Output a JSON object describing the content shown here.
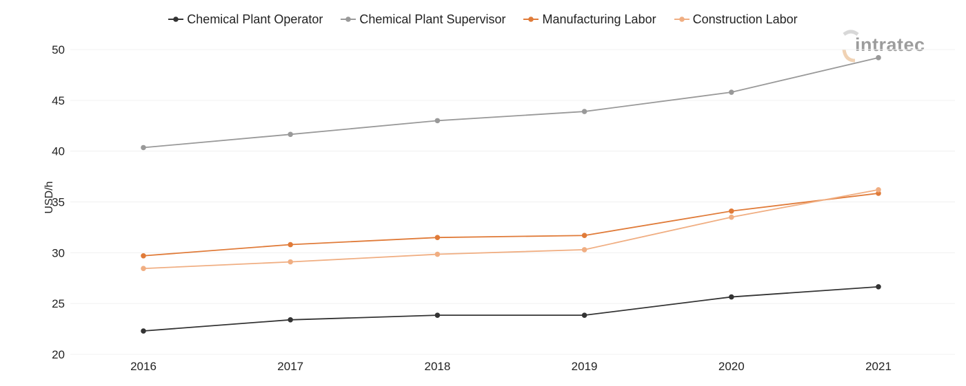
{
  "watermark": {
    "text": "intratec",
    "color": "#9c9c9c",
    "accent": "#f0d2b4"
  },
  "chart_data": {
    "type": "line",
    "title": "",
    "xlabel": "",
    "ylabel": "USD/h",
    "categories": [
      "2016",
      "2017",
      "2018",
      "2019",
      "2020",
      "2021"
    ],
    "ylim": [
      20,
      50
    ],
    "yticks": [
      20,
      25,
      30,
      35,
      40,
      45,
      50
    ],
    "grid": true,
    "legend_position": "top-center",
    "series": [
      {
        "name": "Chemical Plant Operator",
        "color": "#333333",
        "values": [
          22.3,
          23.4,
          23.85,
          23.85,
          25.65,
          26.65
        ]
      },
      {
        "name": "Chemical Plant Supervisor",
        "color": "#999999",
        "values": [
          40.35,
          41.65,
          43.0,
          43.9,
          45.8,
          49.2
        ]
      },
      {
        "name": "Manufacturing Labor",
        "color": "#e07b39",
        "values": [
          29.7,
          30.8,
          31.5,
          31.7,
          34.1,
          35.85
        ]
      },
      {
        "name": "Construction Labor",
        "color": "#f0ae82",
        "values": [
          28.45,
          29.1,
          29.85,
          30.3,
          33.5,
          36.2
        ]
      }
    ]
  }
}
